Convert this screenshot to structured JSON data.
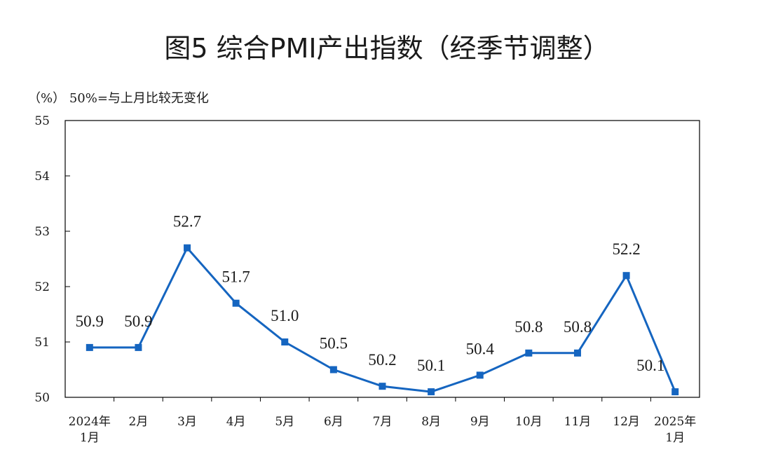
{
  "chart_data": {
    "type": "line",
    "title": "图5  综合PMI产出指数（经季节调整）",
    "unit_note": "（%）  50%=与上月比较无变化",
    "categories": [
      [
        "2024年",
        "1月"
      ],
      [
        "2月"
      ],
      [
        "3月"
      ],
      [
        "4月"
      ],
      [
        "5月"
      ],
      [
        "6月"
      ],
      [
        "7月"
      ],
      [
        "8月"
      ],
      [
        "9月"
      ],
      [
        "10月"
      ],
      [
        "11月"
      ],
      [
        "12月"
      ],
      [
        "2025年",
        "1月"
      ]
    ],
    "series": [
      {
        "values": [
          50.9,
          50.9,
          52.7,
          51.7,
          51.0,
          50.5,
          50.2,
          50.1,
          50.4,
          50.8,
          50.8,
          52.2,
          50.1
        ]
      }
    ],
    "data_labels": [
      "50.9",
      "50.9",
      "52.7",
      "51.7",
      "51.0",
      "50.5",
      "50.2",
      "50.1",
      "50.4",
      "50.8",
      "50.8",
      "52.2",
      "50.1"
    ],
    "y_ticks": [
      "50",
      "51",
      "52",
      "53",
      "54",
      "55"
    ],
    "ylim": [
      50,
      55
    ],
    "grid": false,
    "colors": {
      "series": "#1565c0",
      "axis": "#000000",
      "text": "#1a1a1a"
    }
  }
}
